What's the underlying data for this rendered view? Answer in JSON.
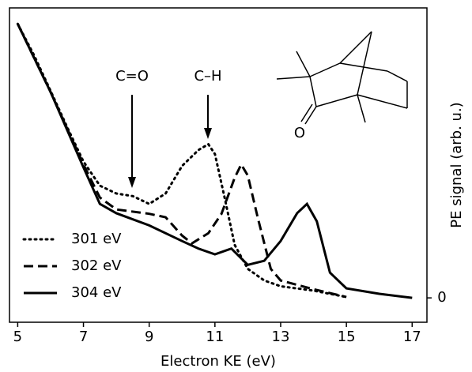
{
  "chart_data": {
    "type": "line",
    "x_label": "Electron KE (eV)",
    "y_label": "PE signal (arb. u.)",
    "xlim": [
      4.75,
      17.45
    ],
    "xticks": [
      5,
      7,
      9,
      11,
      13,
      15,
      17
    ],
    "ylim": [
      -8.4,
      100
    ],
    "yticks": [
      0
    ],
    "y_axis_side": "right",
    "legend": "lower left",
    "annotations": [
      "C=O",
      "C–H"
    ],
    "structure_labels": [
      "O"
    ],
    "series": [
      {
        "name": "301 eV",
        "color": "#000000",
        "style": "dotted",
        "x": [
          5,
          5.5,
          6,
          6.5,
          7,
          7.5,
          8,
          8.5,
          9,
          9.5,
          10,
          10.5,
          10.8,
          11,
          11.3,
          11.6,
          12,
          12.5,
          13,
          14,
          15
        ],
        "values": [
          94.5,
          83.6,
          71.4,
          59,
          47,
          38.7,
          36,
          35.1,
          32.4,
          36,
          45.5,
          51,
          53,
          49.6,
          34.3,
          18.3,
          10,
          6,
          4,
          2.5,
          0.3
        ]
      },
      {
        "name": "302 eV",
        "color": "#000000",
        "style": "dashed",
        "x": [
          5,
          6,
          7,
          7.5,
          8,
          9,
          9.5,
          10,
          10.3,
          10.8,
          11.2,
          11.6,
          11.8,
          12,
          12.3,
          12.7,
          13,
          14,
          15
        ],
        "values": [
          94.5,
          71,
          46,
          34.6,
          30.5,
          29,
          27.8,
          21.5,
          18.8,
          22.3,
          29,
          41.4,
          46,
          42.2,
          27.8,
          10,
          6,
          3,
          0.3
        ]
      },
      {
        "name": "304 eV",
        "color": "#000000",
        "style": "solid",
        "x": [
          5,
          6,
          7,
          7.5,
          8,
          9,
          10,
          10.5,
          11,
          11.5,
          12,
          12.5,
          13,
          13.5,
          13.8,
          14.1,
          14.5,
          15,
          16,
          17
        ],
        "values": [
          94.5,
          71,
          45,
          32.4,
          29.2,
          25,
          19.6,
          17,
          15,
          17,
          11.4,
          12.8,
          19.6,
          29.2,
          32.4,
          26.4,
          8.7,
          3.3,
          1.4,
          0
        ]
      }
    ]
  }
}
